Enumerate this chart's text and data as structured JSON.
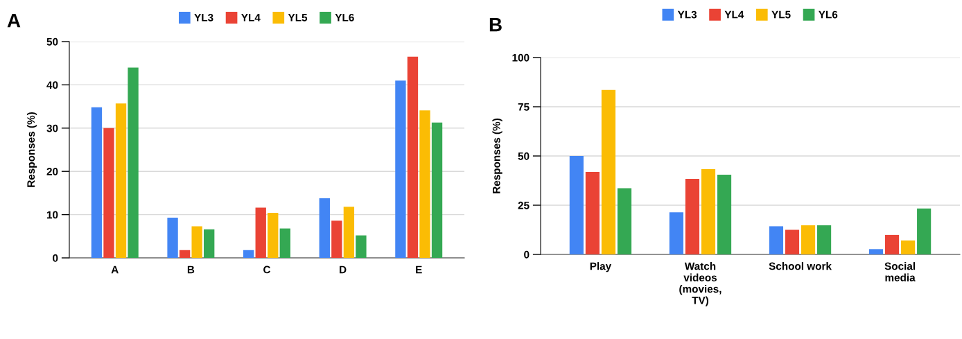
{
  "chart_data": [
    {
      "type": "bar",
      "title": "A",
      "ylabel": "Responses (%)",
      "categories": [
        "A",
        "B",
        "C",
        "D",
        "E"
      ],
      "ylim": [
        0,
        50
      ],
      "yticks": [
        0,
        10,
        20,
        30,
        40,
        50
      ],
      "grid": "y",
      "legend": "top",
      "series": [
        {
          "name": "YL3",
          "color": "#4285f4",
          "values": [
            34.8,
            9.3,
            1.8,
            13.8,
            41.0
          ]
        },
        {
          "name": "YL4",
          "color": "#ea4335",
          "values": [
            30.0,
            1.8,
            11.6,
            8.6,
            46.5
          ]
        },
        {
          "name": "YL5",
          "color": "#fbbc04",
          "values": [
            35.7,
            7.3,
            10.4,
            11.8,
            34.1
          ]
        },
        {
          "name": "YL6",
          "color": "#34a853",
          "values": [
            44.0,
            6.6,
            6.8,
            5.2,
            31.3
          ]
        }
      ]
    },
    {
      "type": "bar",
      "title": "B",
      "ylabel": "Responses (%)",
      "categories": [
        "Play",
        "Watch\nvideos\n(movies,\nTV)",
        "School work",
        "Social\nmedia"
      ],
      "ylim": [
        0,
        100
      ],
      "yticks": [
        0,
        25,
        50,
        75,
        100
      ],
      "grid": "y",
      "legend": "top",
      "series": [
        {
          "name": "YL3",
          "color": "#4285f4",
          "values": [
            50.0,
            21.4,
            14.3,
            2.7
          ]
        },
        {
          "name": "YL4",
          "color": "#ea4335",
          "values": [
            41.9,
            38.4,
            12.5,
            9.9
          ]
        },
        {
          "name": "YL5",
          "color": "#fbbc04",
          "values": [
            83.5,
            43.3,
            14.8,
            7.1
          ]
        },
        {
          "name": "YL6",
          "color": "#34a853",
          "values": [
            33.6,
            40.5,
            14.8,
            23.3
          ]
        }
      ]
    }
  ]
}
